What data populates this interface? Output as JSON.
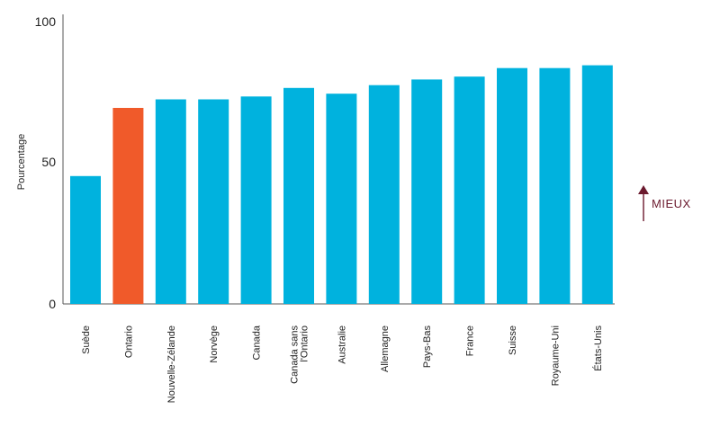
{
  "chart_data": {
    "type": "bar",
    "ylabel": "Pourcentage",
    "ylim": [
      0,
      100
    ],
    "yticks": [
      "0",
      "50",
      "100"
    ],
    "categories": [
      "Suède",
      "Ontario",
      "Nouvelle-Zélande",
      "Norvège",
      "Canada",
      "Canada sans l'Ontario",
      "Australie",
      "Allemagne",
      "Pays-Bas",
      "France",
      "Suisse",
      "Royaume-Uni",
      "États-Unis"
    ],
    "values": [
      45,
      69,
      72,
      72,
      73,
      76,
      74,
      77,
      79,
      80,
      83,
      83,
      84
    ],
    "highlight_index": 1,
    "grid": false,
    "colors": {
      "bar": "#00b2de",
      "highlight": "#f05a2a",
      "axis": "#555555",
      "better": "#6b1a2e"
    },
    "better_label": "MIEUX"
  }
}
